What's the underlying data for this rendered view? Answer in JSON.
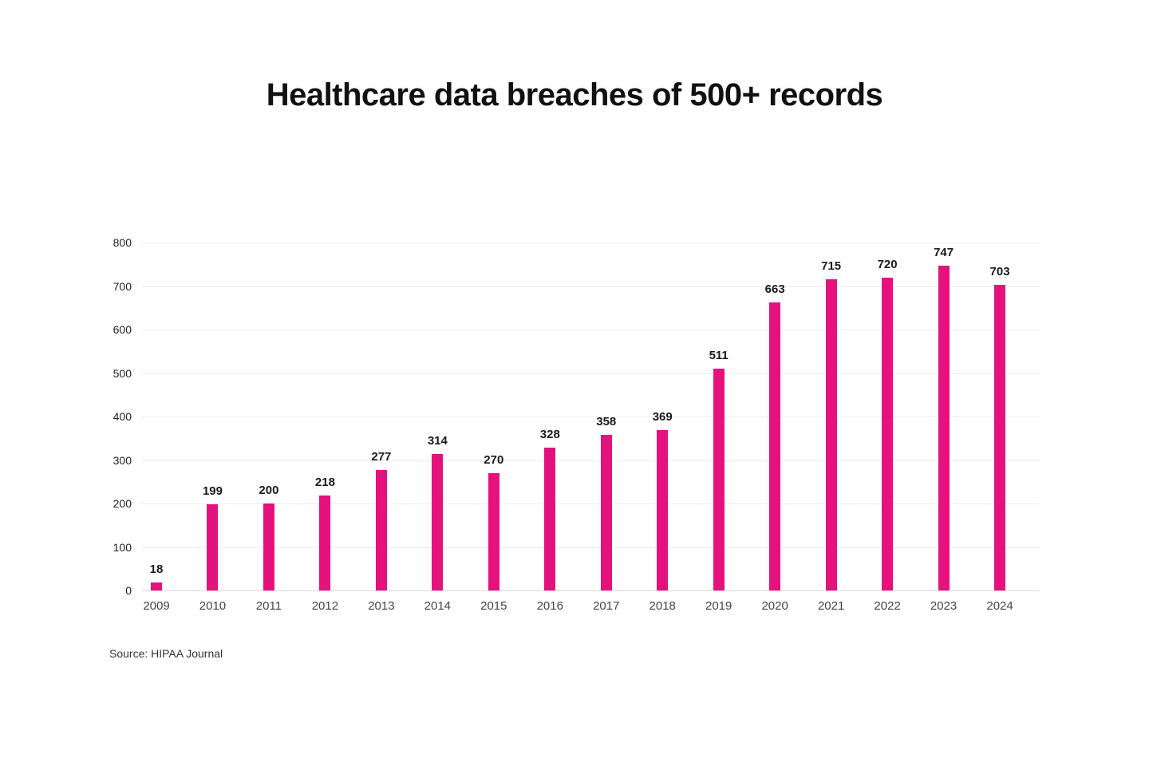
{
  "title": "Healthcare data breaches of 500+ records",
  "source": "Source: HIPAA Journal",
  "colors": {
    "bar": "#E5127D",
    "grid": "#ECECEC",
    "baseline": "#D8D8D8",
    "title_text": "#111111",
    "value_label_text": "#1A1A1A",
    "axis_text": "#444444"
  },
  "chart_data": {
    "type": "bar",
    "title": "Healthcare data breaches of 500+ records",
    "categories": [
      "2009",
      "2010",
      "2011",
      "2012",
      "2013",
      "2014",
      "2015",
      "2016",
      "2017",
      "2018",
      "2019",
      "2020",
      "2021",
      "2022",
      "2023",
      "2024"
    ],
    "values": [
      18,
      199,
      200,
      218,
      277,
      314,
      270,
      328,
      358,
      369,
      511,
      663,
      715,
      720,
      747,
      703
    ],
    "xlabel": "",
    "ylabel": "",
    "ylim": [
      0,
      800
    ],
    "ytick_interval": 100,
    "grid": true,
    "legend": false,
    "data_labels": true,
    "source": "Source: HIPAA Journal"
  }
}
